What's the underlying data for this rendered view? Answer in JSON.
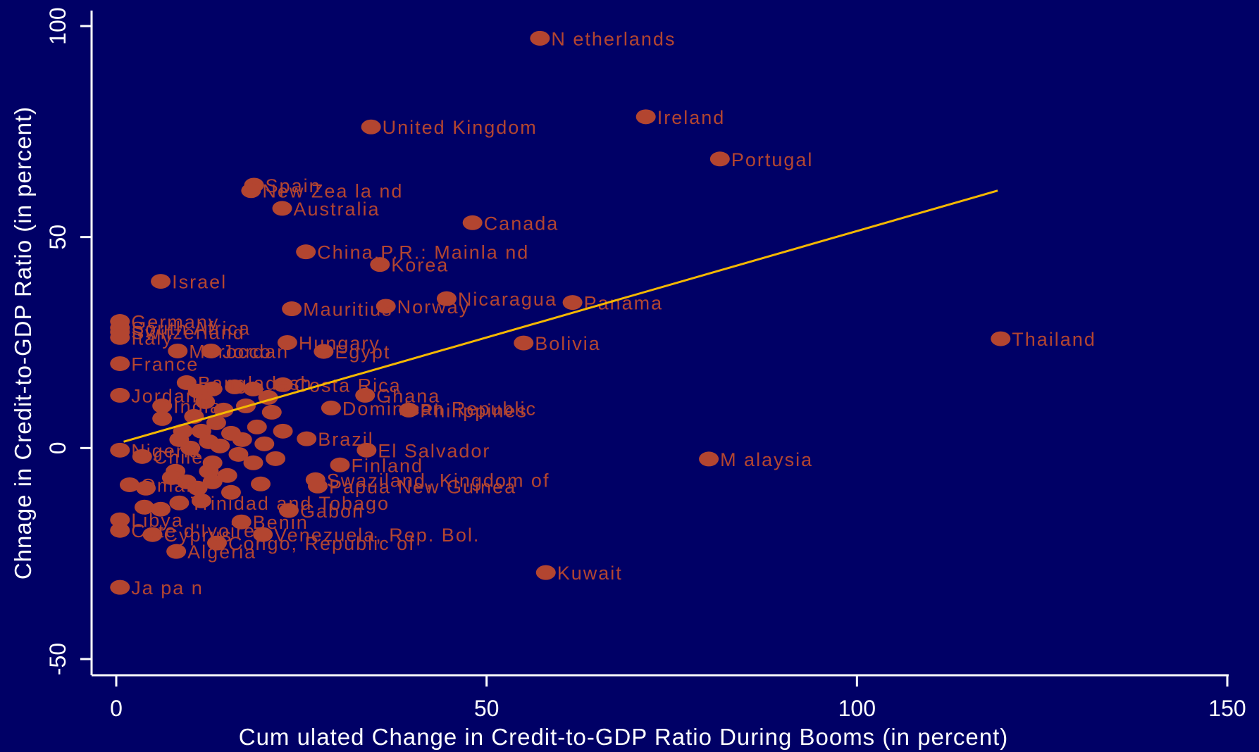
{
  "chart_data": {
    "type": "scatter",
    "xlabel": "Cum ulated Change in Credit-to-GDP Ratio During Booms (in percent)",
    "ylabel": "Chnage in Credit-to-GDP Ratio (in percent)",
    "xlim": [
      0,
      150
    ],
    "ylim": [
      -50,
      100
    ],
    "xticks": [
      {
        "value": 0,
        "label": "0"
      },
      {
        "value": 50,
        "label": "50"
      },
      {
        "value": 100,
        "label": "100"
      },
      {
        "value": 150,
        "label": "150"
      }
    ],
    "yticks": [
      {
        "value": -50,
        "label": "-50"
      },
      {
        "value": 0,
        "label": "0"
      },
      {
        "value": 50,
        "label": "50"
      },
      {
        "value": 100,
        "label": "100"
      }
    ],
    "grid": false,
    "colors": {
      "background": "#000066",
      "axes": "#ffffff",
      "points": "#b34530",
      "fit_line": "#f5b800"
    },
    "fit_line": {
      "x": [
        1,
        119
      ],
      "y": [
        1.5,
        61
      ]
    },
    "points": [
      {
        "x": 57.2,
        "y": 97.1,
        "label": "N etherlands"
      },
      {
        "x": 71.5,
        "y": 78.5,
        "label": "Ireland"
      },
      {
        "x": 34.4,
        "y": 76.1,
        "label": "United Kingdom"
      },
      {
        "x": 81.5,
        "y": 68.5,
        "label": "Portugal"
      },
      {
        "x": 18.6,
        "y": 62.3,
        "label": "Spain"
      },
      {
        "x": 18.2,
        "y": 61.0,
        "label": "New Zea la nd"
      },
      {
        "x": 22.4,
        "y": 56.8,
        "label": "Australia"
      },
      {
        "x": 48.1,
        "y": 53.4,
        "label": "Canada"
      },
      {
        "x": 25.6,
        "y": 46.5,
        "label": "China,P.R.: Mainla nd"
      },
      {
        "x": 35.6,
        "y": 43.5,
        "label": "Korea"
      },
      {
        "x": 6.0,
        "y": 39.5,
        "label": "Israel"
      },
      {
        "x": 23.7,
        "y": 33.0,
        "label": "Mauritius"
      },
      {
        "x": 36.4,
        "y": 33.6,
        "label": "Norway"
      },
      {
        "x": 44.6,
        "y": 35.4,
        "label": "Nicaragua"
      },
      {
        "x": 61.6,
        "y": 34.5,
        "label": "Panama"
      },
      {
        "x": 119.4,
        "y": 25.9,
        "label": "Thailand"
      },
      {
        "x": 55.0,
        "y": 24.9,
        "label": "Bolivia"
      },
      {
        "x": 23.1,
        "y": 25.0,
        "label": "Hungary"
      },
      {
        "x": 28.0,
        "y": 22.9,
        "label": "Egypt"
      },
      {
        "x": 0.5,
        "y": 30.0,
        "label": "Germany"
      },
      {
        "x": 0.5,
        "y": 28.5,
        "label": "South Africa"
      },
      {
        "x": 0.5,
        "y": 27.5,
        "label": "Switzerland"
      },
      {
        "x": 0.5,
        "y": 26.2,
        "label": "Italy"
      },
      {
        "x": 8.3,
        "y": 23.0,
        "label": "Morocco"
      },
      {
        "x": 12.8,
        "y": 23.0,
        "label": "Jordan"
      },
      {
        "x": 0.5,
        "y": 20.0,
        "label": "France"
      },
      {
        "x": 9.5,
        "y": 15.5,
        "label": "Bangladesh"
      },
      {
        "x": 22.5,
        "y": 15.0,
        "label": "Costa Rica"
      },
      {
        "x": 33.6,
        "y": 12.5,
        "label": "Ghana"
      },
      {
        "x": 0.5,
        "y": 12.5,
        "label": "Jordan"
      },
      {
        "x": 39.5,
        "y": 9.0,
        "label": "Philippines"
      },
      {
        "x": 29.0,
        "y": 9.5,
        "label": "Dominican Republic"
      },
      {
        "x": 6.2,
        "y": 10.0,
        "label": "India"
      },
      {
        "x": 25.7,
        "y": 2.2,
        "label": "Brazil"
      },
      {
        "x": 33.8,
        "y": -0.5,
        "label": "El Salvador"
      },
      {
        "x": 0.5,
        "y": -0.5,
        "label": "Nigeria"
      },
      {
        "x": 3.5,
        "y": -2.0,
        "label": "Chile"
      },
      {
        "x": 80.0,
        "y": -2.6,
        "label": "M alaysia"
      },
      {
        "x": 30.2,
        "y": -4.0,
        "label": "Finland"
      },
      {
        "x": 26.9,
        "y": -7.5,
        "label": "Swaziland, Kingdom of"
      },
      {
        "x": 27.2,
        "y": -9.0,
        "label": "Papua New Guinea"
      },
      {
        "x": 1.8,
        "y": -8.7,
        "label": "Oman"
      },
      {
        "x": 8.5,
        "y": -13.0,
        "label": "Trinidad and Tobago"
      },
      {
        "x": 23.3,
        "y": -14.8,
        "label": "Gabon"
      },
      {
        "x": 0.5,
        "y": -17.0,
        "label": "Libya"
      },
      {
        "x": 16.9,
        "y": -17.5,
        "label": "Benin"
      },
      {
        "x": 0.5,
        "y": -19.5,
        "label": "Cote d'Ivoire"
      },
      {
        "x": 19.8,
        "y": -20.5,
        "label": "Venezuela, Rep. Bol."
      },
      {
        "x": 4.9,
        "y": -20.5,
        "label": "Cyprus"
      },
      {
        "x": 13.6,
        "y": -22.5,
        "label": "Congo, Republic of"
      },
      {
        "x": 8.1,
        "y": -24.5,
        "label": "Algeria"
      },
      {
        "x": 58.0,
        "y": -29.5,
        "label": "Kuwait"
      },
      {
        "x": 0.5,
        "y": -33.0,
        "label": "Ja pa n"
      },
      {
        "x": 13.0,
        "y": 14.0,
        "label": ""
      },
      {
        "x": 16.0,
        "y": 14.5,
        "label": ""
      },
      {
        "x": 18.5,
        "y": 14.0,
        "label": ""
      },
      {
        "x": 11.0,
        "y": 13.5,
        "label": ""
      },
      {
        "x": 20.5,
        "y": 12.0,
        "label": ""
      },
      {
        "x": 12.0,
        "y": 11.0,
        "label": ""
      },
      {
        "x": 14.5,
        "y": 9.0,
        "label": ""
      },
      {
        "x": 17.5,
        "y": 10.0,
        "label": ""
      },
      {
        "x": 21.0,
        "y": 8.5,
        "label": ""
      },
      {
        "x": 10.5,
        "y": 7.5,
        "label": ""
      },
      {
        "x": 6.2,
        "y": 7.0,
        "label": ""
      },
      {
        "x": 13.5,
        "y": 6.0,
        "label": ""
      },
      {
        "x": 19.0,
        "y": 5.0,
        "label": ""
      },
      {
        "x": 9.0,
        "y": 4.0,
        "label": ""
      },
      {
        "x": 11.5,
        "y": 4.0,
        "label": ""
      },
      {
        "x": 15.5,
        "y": 3.5,
        "label": ""
      },
      {
        "x": 22.5,
        "y": 4.0,
        "label": ""
      },
      {
        "x": 8.5,
        "y": 2.0,
        "label": ""
      },
      {
        "x": 12.5,
        "y": 1.5,
        "label": ""
      },
      {
        "x": 17.0,
        "y": 2.0,
        "label": ""
      },
      {
        "x": 20.0,
        "y": 1.0,
        "label": ""
      },
      {
        "x": 10.0,
        "y": 0.0,
        "label": ""
      },
      {
        "x": 14.0,
        "y": 0.5,
        "label": ""
      },
      {
        "x": 16.5,
        "y": -1.5,
        "label": ""
      },
      {
        "x": 21.5,
        "y": -2.5,
        "label": ""
      },
      {
        "x": 13.0,
        "y": -3.5,
        "label": ""
      },
      {
        "x": 18.5,
        "y": -3.5,
        "label": ""
      },
      {
        "x": 8.0,
        "y": -5.5,
        "label": ""
      },
      {
        "x": 12.5,
        "y": -5.5,
        "label": ""
      },
      {
        "x": 15.0,
        "y": -6.5,
        "label": ""
      },
      {
        "x": 7.5,
        "y": -7.0,
        "label": ""
      },
      {
        "x": 9.5,
        "y": -8.0,
        "label": ""
      },
      {
        "x": 13.0,
        "y": -8.0,
        "label": ""
      },
      {
        "x": 19.5,
        "y": -8.5,
        "label": ""
      },
      {
        "x": 4.0,
        "y": -9.5,
        "label": ""
      },
      {
        "x": 11.0,
        "y": -9.5,
        "label": ""
      },
      {
        "x": 15.5,
        "y": -10.5,
        "label": ""
      },
      {
        "x": 3.8,
        "y": -14.0,
        "label": ""
      },
      {
        "x": 6.0,
        "y": -14.5,
        "label": ""
      },
      {
        "x": 11.5,
        "y": -12.5,
        "label": ""
      }
    ]
  }
}
